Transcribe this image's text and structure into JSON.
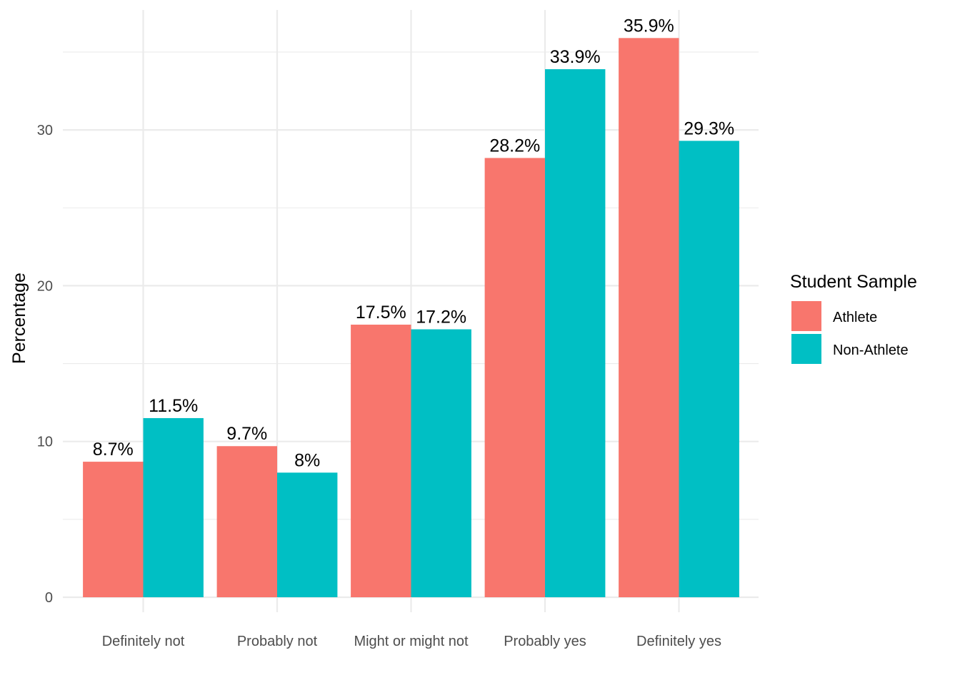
{
  "chart_data": {
    "type": "bar",
    "categories": [
      "Definitely not",
      "Probably not",
      "Might or might not",
      "Probably yes",
      "Definitely yes"
    ],
    "series": [
      {
        "name": "Athlete",
        "color": "#F8766D",
        "values": [
          8.7,
          9.7,
          17.5,
          28.2,
          35.9
        ],
        "labels": [
          "8.7%",
          "9.7%",
          "17.5%",
          "28.2%",
          "35.9%"
        ]
      },
      {
        "name": "Non-Athlete",
        "color": "#00BFC4",
        "values": [
          11.5,
          8.0,
          17.2,
          33.9,
          29.3
        ],
        "labels": [
          "11.5%",
          "8%",
          "17.2%",
          "33.9%",
          "29.3%"
        ]
      }
    ],
    "title": "",
    "xlabel": "",
    "ylabel": "Percentage",
    "ylim": [
      0,
      37.7
    ],
    "yticks": [
      0,
      10,
      20,
      30
    ],
    "yticks_labels": [
      "0",
      "10",
      "20",
      "30"
    ],
    "grid": true,
    "legend": {
      "title": "Student Sample",
      "position": "right"
    }
  }
}
